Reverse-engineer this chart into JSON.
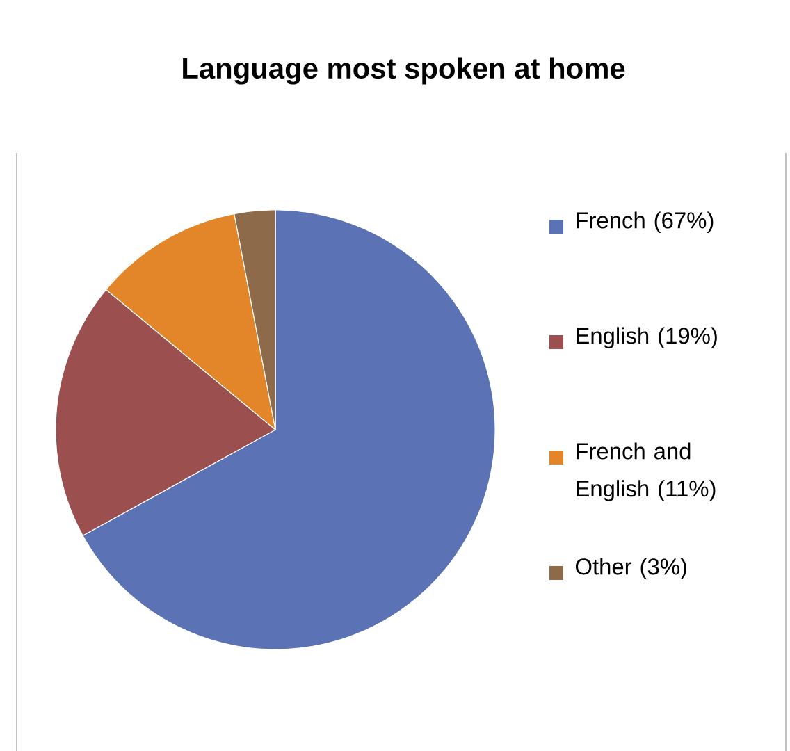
{
  "chart_data": {
    "type": "pie",
    "title": "Language most spoken at home",
    "categories": [
      "French (67%)",
      "English (19%)",
      "French and English (11%)",
      "Other (3%)"
    ],
    "values": [
      67,
      19,
      11,
      3
    ],
    "colors": [
      "#5b73b5",
      "#9b4f4f",
      "#e3862a",
      "#8c6a4a"
    ],
    "legend": "right"
  }
}
